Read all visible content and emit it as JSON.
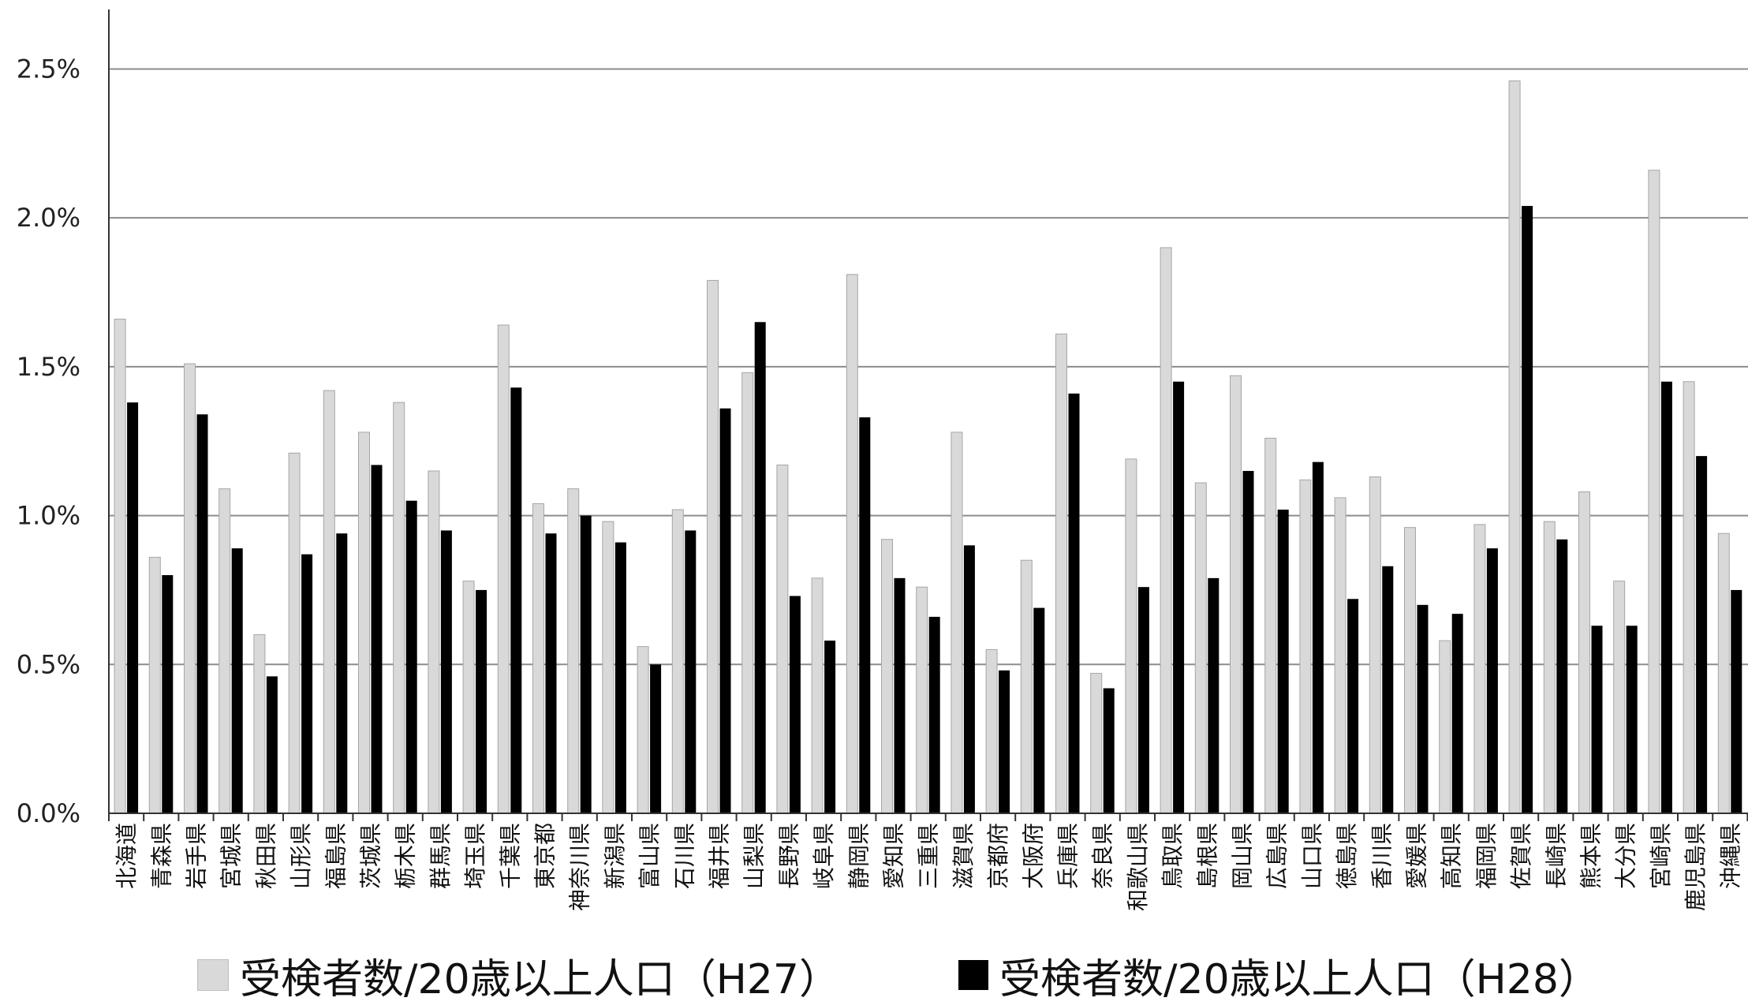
{
  "chart_data": {
    "type": "bar",
    "title": "",
    "xlabel": "",
    "ylabel": "",
    "ylim": [
      0,
      2.7
    ],
    "yticks": [
      0.0,
      0.5,
      1.0,
      1.5,
      2.0,
      2.5
    ],
    "ytick_labels": [
      "0.0%",
      "0.5%",
      "1.0%",
      "1.5%",
      "2.0%",
      "2.5%"
    ],
    "grid": "horizontal",
    "legend_position": "bottom",
    "categories": [
      "北海道",
      "青森県",
      "岩手県",
      "宮城県",
      "秋田県",
      "山形県",
      "福島県",
      "茨城県",
      "栃木県",
      "群馬県",
      "埼玉県",
      "千葉県",
      "東京都",
      "神奈川県",
      "新潟県",
      "富山県",
      "石川県",
      "福井県",
      "山梨県",
      "長野県",
      "岐阜県",
      "静岡県",
      "愛知県",
      "三重県",
      "滋賀県",
      "京都府",
      "大阪府",
      "兵庫県",
      "奈良県",
      "和歌山県",
      "鳥取県",
      "島根県",
      "岡山県",
      "広島県",
      "山口県",
      "徳島県",
      "香川県",
      "愛媛県",
      "高知県",
      "福岡県",
      "佐賀県",
      "長崎県",
      "熊本県",
      "大分県",
      "宮崎県",
      "鹿児島県",
      "沖縄県"
    ],
    "series": [
      {
        "name": "受検者数/20歳以上人口（H27）",
        "color": "#d9d9d9",
        "values": [
          1.66,
          0.86,
          1.51,
          1.09,
          0.6,
          1.21,
          1.42,
          1.28,
          1.38,
          1.15,
          0.78,
          1.64,
          1.04,
          1.09,
          0.98,
          0.56,
          1.02,
          1.79,
          1.48,
          1.17,
          0.79,
          1.81,
          0.92,
          0.76,
          1.28,
          0.55,
          0.85,
          1.61,
          0.47,
          1.19,
          1.9,
          1.11,
          1.47,
          1.26,
          1.12,
          1.06,
          1.13,
          0.96,
          0.58,
          0.97,
          2.46,
          0.98,
          1.08,
          0.78,
          2.16,
          1.45,
          0.94
        ]
      },
      {
        "name": "受検者数/20歳以上人口（H28）",
        "color": "#000000",
        "values": [
          1.38,
          0.8,
          1.34,
          0.89,
          0.46,
          0.87,
          0.94,
          1.17,
          1.05,
          0.95,
          0.75,
          1.43,
          0.94,
          1.0,
          0.91,
          0.5,
          0.95,
          1.36,
          1.65,
          0.73,
          0.58,
          1.33,
          0.79,
          0.66,
          0.9,
          0.48,
          0.69,
          1.41,
          0.42,
          0.76,
          1.45,
          0.79,
          1.15,
          1.02,
          1.18,
          0.72,
          0.83,
          0.7,
          0.67,
          0.89,
          2.04,
          0.92,
          0.63,
          0.63,
          1.45,
          1.2,
          0.75
        ]
      }
    ]
  }
}
